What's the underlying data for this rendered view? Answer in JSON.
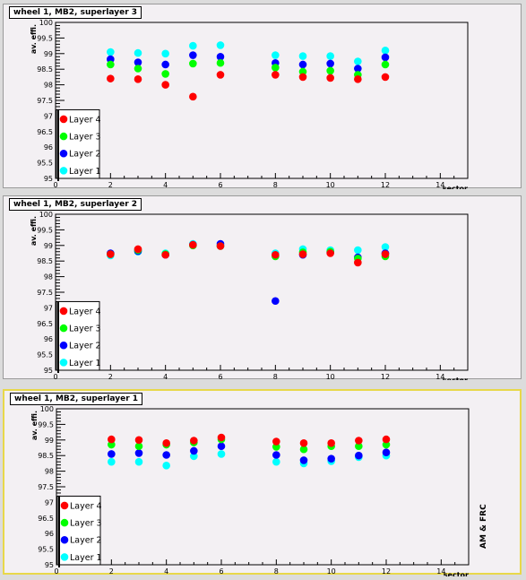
{
  "chart_data": [
    {
      "type": "scatter",
      "title": "wheel 1, MB2, superlayer 3",
      "xlabel": "sector",
      "ylabel": "av. effi.",
      "xlim": [
        0,
        15
      ],
      "ylim": [
        95,
        100
      ],
      "x_ticks": [
        "0",
        "2",
        "4",
        "6",
        "8",
        "10",
        "12",
        "14"
      ],
      "y_ticks": [
        "95",
        "95.5",
        "96",
        "96.5",
        "97",
        "97.5",
        "98",
        "98.5",
        "99",
        "99.5",
        "100"
      ],
      "legend_position": "bottom-left",
      "x": [
        2,
        3,
        4,
        5,
        6,
        8,
        9,
        10,
        11,
        12
      ],
      "series": [
        {
          "name": "Layer 1",
          "color": "#00ffff",
          "values": [
            99.05,
            99.02,
            99.0,
            99.25,
            99.27,
            98.95,
            98.92,
            98.92,
            98.75,
            99.1
          ]
        },
        {
          "name": "Layer 2",
          "color": "#0000ff",
          "values": [
            98.82,
            98.72,
            98.65,
            98.95,
            98.9,
            98.7,
            98.65,
            98.68,
            98.52,
            98.88
          ]
        },
        {
          "name": "Layer 3",
          "color": "#00ff00",
          "values": [
            98.65,
            98.52,
            98.35,
            98.68,
            98.7,
            98.55,
            98.42,
            98.45,
            98.32,
            98.65
          ]
        },
        {
          "name": "Layer 4",
          "color": "#ff0000",
          "values": [
            98.2,
            98.18,
            98.0,
            97.62,
            98.32,
            98.32,
            98.25,
            98.22,
            98.18,
            98.25
          ]
        }
      ]
    },
    {
      "type": "scatter",
      "title": "wheel 1, MB2, superlayer 2",
      "xlabel": "sector",
      "ylabel": "av. effi.",
      "xlim": [
        0,
        15
      ],
      "ylim": [
        95,
        100
      ],
      "x_ticks": [
        "0",
        "2",
        "4",
        "6",
        "8",
        "10",
        "12",
        "14"
      ],
      "y_ticks": [
        "95",
        "95.5",
        "96",
        "96.5",
        "97",
        "97.5",
        "98",
        "98.5",
        "99",
        "99.5",
        "100"
      ],
      "legend_position": "bottom-left",
      "x": [
        2,
        3,
        4,
        5,
        6,
        8,
        9,
        10,
        11,
        12
      ],
      "series": [
        {
          "name": "Layer 1",
          "color": "#00ffff",
          "values": [
            98.68,
            98.8,
            98.75,
            99.05,
            98.98,
            98.75,
            98.88,
            98.85,
            98.85,
            98.95
          ]
        },
        {
          "name": "Layer 2",
          "color": "#0000ff",
          "values": [
            98.75,
            98.82,
            98.7,
            99.02,
            99.05,
            97.22,
            98.7,
            98.78,
            98.62,
            98.75
          ]
        },
        {
          "name": "Layer 3",
          "color": "#00ff00",
          "values": [
            98.72,
            98.85,
            98.72,
            99.0,
            98.98,
            98.65,
            98.78,
            98.8,
            98.58,
            98.65
          ]
        },
        {
          "name": "Layer 4",
          "color": "#ff0000",
          "values": [
            98.72,
            98.88,
            98.7,
            99.02,
            98.98,
            98.7,
            98.72,
            98.75,
            98.45,
            98.72
          ]
        }
      ]
    },
    {
      "type": "scatter",
      "title": "wheel 1, MB2, superlayer 1",
      "xlabel": "sector",
      "ylabel": "av. effi.",
      "side_label": "AM & FRC",
      "xlim": [
        0,
        15
      ],
      "ylim": [
        95,
        100
      ],
      "x_ticks": [
        "0",
        "2",
        "4",
        "6",
        "8",
        "10",
        "12",
        "14"
      ],
      "y_ticks": [
        "95",
        "95.5",
        "96",
        "96.5",
        "97",
        "97.5",
        "98",
        "98.5",
        "99",
        "99.5",
        "100"
      ],
      "legend_position": "bottom-left",
      "x": [
        2,
        3,
        4,
        5,
        6,
        8,
        9,
        10,
        11,
        12
      ],
      "series": [
        {
          "name": "Layer 1",
          "color": "#00ffff",
          "values": [
            98.3,
            98.3,
            98.18,
            98.48,
            98.55,
            98.3,
            98.25,
            98.32,
            98.45,
            98.5
          ]
        },
        {
          "name": "Layer 2",
          "color": "#0000ff",
          "values": [
            98.55,
            98.58,
            98.52,
            98.65,
            98.8,
            98.52,
            98.35,
            98.4,
            98.5,
            98.6
          ]
        },
        {
          "name": "Layer 3",
          "color": "#00ff00",
          "values": [
            98.85,
            98.8,
            98.85,
            98.92,
            99.02,
            98.78,
            98.7,
            98.8,
            98.8,
            98.85
          ]
        },
        {
          "name": "Layer 4",
          "color": "#ff0000",
          "values": [
            99.02,
            99.0,
            98.9,
            98.98,
            99.08,
            98.95,
            98.9,
            98.9,
            98.98,
            99.02
          ]
        }
      ]
    }
  ]
}
